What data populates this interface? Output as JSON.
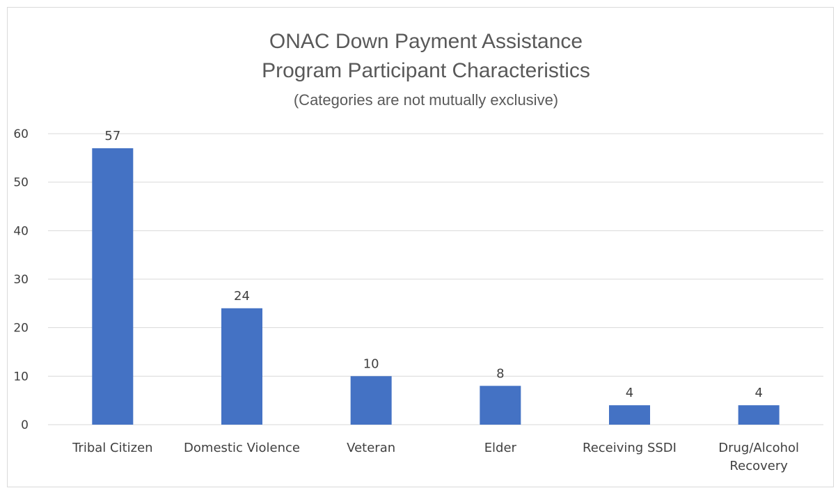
{
  "chart_data": {
    "type": "bar",
    "title_lines": [
      "ONAC Down Payment Assistance",
      "Program Participant Characteristics"
    ],
    "subtitle": "(Categories are not mutually exclusive)",
    "categories": [
      [
        "Tribal Citizen"
      ],
      [
        "Domestic Violence"
      ],
      [
        "Veteran"
      ],
      [
        "Elder"
      ],
      [
        "Receiving SSDI"
      ],
      [
        "Drug/Alcohol",
        "Recovery"
      ]
    ],
    "values": [
      57,
      24,
      10,
      8,
      4,
      4
    ],
    "data_labels": [
      "57",
      "24",
      "10",
      "8",
      "4",
      "4"
    ],
    "ylim": [
      0,
      60
    ],
    "yticks": [
      0,
      10,
      20,
      30,
      40,
      50,
      60
    ],
    "grid": true,
    "legend": "none",
    "xlabel": "",
    "ylabel": "",
    "colors": {
      "bar": "#4472c4",
      "grid": "#d9d9d9",
      "text": "#404040",
      "title": "#595959"
    }
  }
}
